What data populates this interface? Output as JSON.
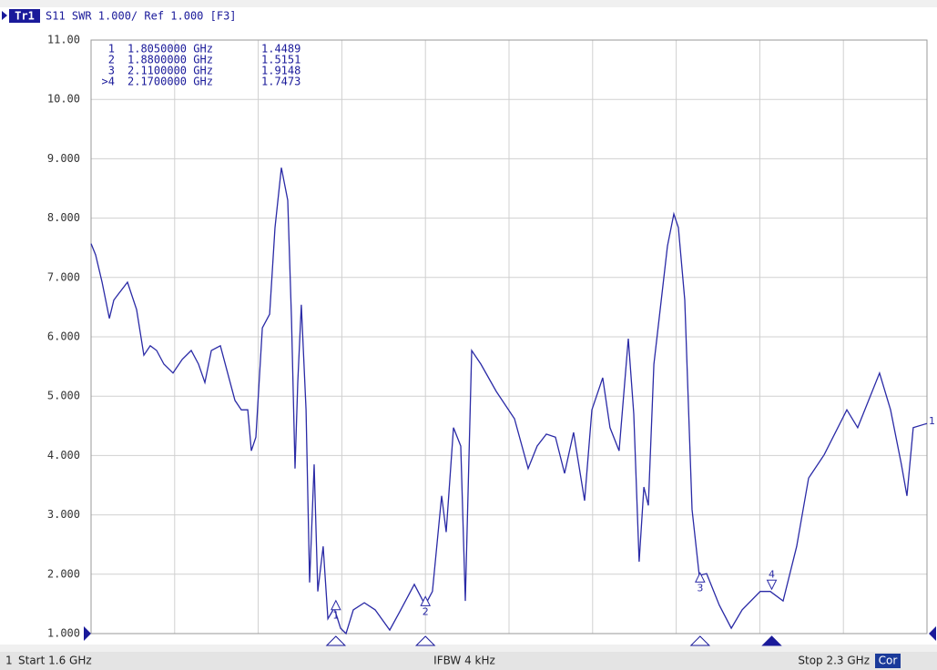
{
  "chart_data": {
    "type": "line",
    "header": {
      "trace": "Tr1",
      "text": "S11 SWR 1.000/ Ref 1.000 [F3]"
    },
    "xlim": [
      1.6,
      2.3
    ],
    "xticks": [
      1.6,
      1.67,
      1.74,
      1.81,
      1.88,
      1.95,
      2.02,
      2.09,
      2.16,
      2.23,
      2.3
    ],
    "ylim": [
      1,
      11
    ],
    "yticks": [
      {
        "value": 1,
        "label": "1.000"
      },
      {
        "value": 2,
        "label": "2.000"
      },
      {
        "value": 3,
        "label": "3.000"
      },
      {
        "value": 4,
        "label": "4.000"
      },
      {
        "value": 5,
        "label": "5.000"
      },
      {
        "value": 6,
        "label": "6.000"
      },
      {
        "value": 7,
        "label": "7.000"
      },
      {
        "value": 8,
        "label": "8.000"
      },
      {
        "value": 9,
        "label": "9.000"
      },
      {
        "value": 10,
        "label": "10.00"
      },
      {
        "value": 11,
        "label": "11.00"
      }
    ],
    "grid": true,
    "x": [
      1.6,
      1.6038,
      1.6092,
      1.6153,
      1.6191,
      1.6305,
      1.6381,
      1.6442,
      1.6496,
      1.6549,
      1.661,
      1.6686,
      1.6763,
      1.6839,
      1.69,
      1.6953,
      1.7007,
      1.7083,
      1.7144,
      1.7205,
      1.7258,
      1.7312,
      1.7342,
      1.738,
      1.7434,
      1.7495,
      1.754,
      1.7594,
      1.7647,
      1.7678,
      1.7708,
      1.7731,
      1.7761,
      1.78,
      1.783,
      1.7868,
      1.7899,
      1.7944,
      1.7983,
      1.8036,
      1.8089,
      1.8135,
      1.8196,
      1.8288,
      1.8379,
      1.8501,
      1.8593,
      1.8707,
      1.8798,
      1.8859,
      1.8936,
      1.8974,
      1.9035,
      1.9096,
      1.9134,
      1.9187,
      1.9264,
      1.9393,
      1.9546,
      1.966,
      1.9736,
      1.9813,
      1.9889,
      1.9965,
      2.0041,
      2.0133,
      2.0194,
      2.0285,
      2.0346,
      2.0422,
      2.0499,
      2.0545,
      2.059,
      2.0629,
      2.0667,
      2.0713,
      2.0766,
      2.0827,
      2.088,
      2.0918,
      2.0972,
      2.1033,
      2.1093,
      2.1155,
      2.1261,
      2.1361,
      2.1452,
      2.1604,
      2.1688,
      2.1795,
      2.1909,
      2.2009,
      2.2138,
      2.2329,
      2.242,
      2.2603,
      2.2695,
      2.2786,
      2.2832,
      2.2885,
      2.3
    ],
    "series": [
      {
        "name": "Tr1",
        "end_label": "1",
        "color": "#2a2aa6",
        "values": [
          7.57,
          7.38,
          6.92,
          6.31,
          6.62,
          6.92,
          6.46,
          5.69,
          5.85,
          5.77,
          5.54,
          5.39,
          5.62,
          5.77,
          5.54,
          5.23,
          5.77,
          5.85,
          5.39,
          4.93,
          4.77,
          4.77,
          4.08,
          4.31,
          6.15,
          6.38,
          7.84,
          8.85,
          8.3,
          6.31,
          3.78,
          5.23,
          6.54,
          4.77,
          1.86,
          3.85,
          1.71,
          2.47,
          1.25,
          1.43,
          1.09,
          1.0,
          1.4,
          1.52,
          1.4,
          1.06,
          1.4,
          1.83,
          1.48,
          1.71,
          3.32,
          2.71,
          4.47,
          4.16,
          1.55,
          5.77,
          5.54,
          5.08,
          4.62,
          3.78,
          4.16,
          4.36,
          4.31,
          3.7,
          4.39,
          3.24,
          4.77,
          5.31,
          4.47,
          4.08,
          5.97,
          4.7,
          2.21,
          3.47,
          3.16,
          5.54,
          6.46,
          7.53,
          8.07,
          7.84,
          6.62,
          3.09,
          1.98,
          2.01,
          1.48,
          1.09,
          1.4,
          1.71,
          1.71,
          1.55,
          2.47,
          3.62,
          4.01,
          4.77,
          4.47,
          5.39,
          4.77,
          3.85,
          3.32,
          4.47,
          4.54
        ]
      }
    ],
    "markers": [
      {
        "name": "1",
        "table_name": "1",
        "x": 1.805,
        "x_label": "1.8050000 GHz",
        "y": 1.4489
      },
      {
        "name": "2",
        "table_name": "2",
        "x": 1.88,
        "x_label": "1.8800000 GHz",
        "y": 1.5151
      },
      {
        "name": "3",
        "table_name": "3",
        "x": 2.11,
        "x_label": "2.1100000 GHz",
        "y": 1.9148
      },
      {
        "name": "4",
        "table_name": ">4",
        "x": 2.17,
        "x_label": "2.1700000 GHz",
        "y": 1.7473,
        "active": true
      }
    ],
    "status": {
      "channel": "1",
      "start": "Start 1.6 GHz",
      "ifbw": "IFBW 4 kHz",
      "stop": "Stop 2.3 GHz",
      "cor": "Cor"
    }
  }
}
